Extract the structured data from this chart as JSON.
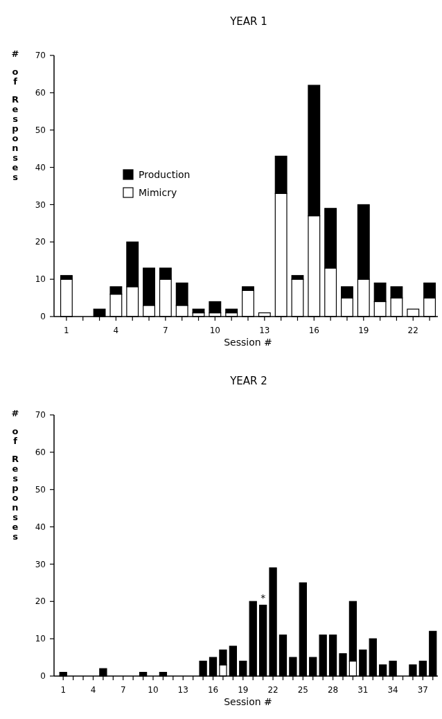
{
  "chart_data": [
    {
      "type": "bar",
      "title": "YEAR 1",
      "xlabel": "Session #",
      "ylabel": "# of Responses",
      "stacked": true,
      "legend": "left",
      "categories": [
        "1",
        null,
        null,
        "4",
        null,
        null,
        "7",
        null,
        null,
        "10",
        null,
        null,
        "13",
        null,
        null,
        "16",
        null,
        null,
        "19",
        null,
        null,
        "22",
        null
      ],
      "series": [
        {
          "name": "Mimicry",
          "color": "#ffffff",
          "values": [
            10,
            0,
            0,
            6,
            8,
            3,
            10,
            3,
            1,
            1,
            1,
            7,
            1,
            33,
            10,
            27,
            13,
            5,
            10,
            4,
            5,
            2,
            5
          ]
        },
        {
          "name": "Production",
          "color": "#000000",
          "values": [
            1,
            0,
            2,
            2,
            12,
            10,
            3,
            6,
            1,
            3,
            1,
            1,
            0,
            10,
            1,
            35,
            16,
            3,
            20,
            5,
            3,
            0,
            4
          ]
        }
      ],
      "ylim": [
        0,
        70
      ],
      "yticks": [
        0,
        10,
        20,
        30,
        40,
        50,
        60,
        70
      ]
    },
    {
      "type": "bar",
      "title": "YEAR 2",
      "xlabel": "Session #",
      "ylabel": "# of Responses",
      "stacked": true,
      "categories": [
        "1",
        null,
        null,
        "4",
        null,
        null,
        "7",
        null,
        null,
        "10",
        null,
        null,
        "13",
        null,
        null,
        "16",
        null,
        null,
        "19",
        null,
        null,
        "22",
        null,
        null,
        "25",
        null,
        null,
        "28",
        null,
        null,
        "31",
        null,
        null,
        "34",
        null,
        null,
        "37",
        null
      ],
      "series": [
        {
          "color": "#ffffff",
          "values": [
            0,
            0,
            0,
            0,
            0,
            0,
            0,
            0,
            0,
            0,
            0,
            0,
            0,
            0,
            0,
            0,
            3,
            0,
            0,
            0,
            0,
            0,
            0,
            0,
            0,
            0,
            0,
            0,
            0,
            4,
            0,
            0,
            0,
            0,
            0,
            0,
            0,
            0
          ]
        },
        {
          "color": "#000000",
          "values": [
            1,
            0,
            0,
            0,
            2,
            0,
            0,
            0,
            1,
            0,
            1,
            0,
            0,
            0,
            4,
            5,
            4,
            8,
            4,
            20,
            19,
            29,
            11,
            5,
            25,
            5,
            11,
            11,
            6,
            16,
            7,
            10,
            3,
            4,
            0,
            3,
            4,
            12
          ]
        }
      ],
      "ylim": [
        0,
        70
      ],
      "yticks": [
        0,
        10,
        20,
        30,
        40,
        50,
        60,
        70
      ],
      "annotations": [
        {
          "text": "*",
          "y": 19
        }
      ]
    }
  ]
}
